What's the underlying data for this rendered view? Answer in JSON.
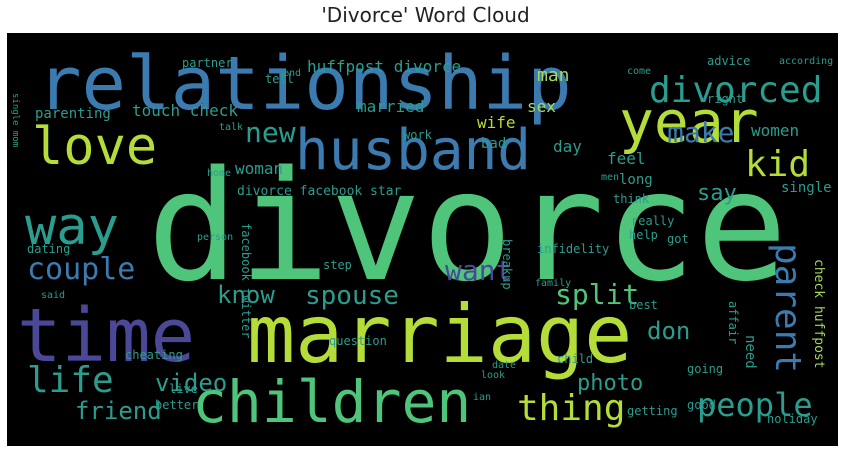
{
  "title": "'Divorce' Word Cloud",
  "colors": {
    "background": "#000000",
    "teal": "#2a9d8f",
    "blue": "#3b7bb0",
    "green": "#4ec57a",
    "lime": "#b5dd3a",
    "purple": "#4b4898",
    "yellowgreen": "#a6d85c"
  },
  "words": [
    {
      "text": "divorce",
      "color": "green"
    },
    {
      "text": "relationship",
      "color": "blue"
    },
    {
      "text": "marriage",
      "color": "lime"
    },
    {
      "text": "husband",
      "color": "blue"
    },
    {
      "text": "time",
      "color": "purple"
    },
    {
      "text": "children",
      "color": "green"
    },
    {
      "text": "love",
      "color": "lime"
    },
    {
      "text": "year",
      "color": "lime"
    },
    {
      "text": "way",
      "color": "teal"
    },
    {
      "text": "divorced",
      "color": "teal"
    },
    {
      "text": "parent",
      "color": "blue"
    },
    {
      "text": "life",
      "color": "teal"
    },
    {
      "text": "kid",
      "color": "lime"
    },
    {
      "text": "couple",
      "color": "blue"
    },
    {
      "text": "new",
      "color": "teal"
    },
    {
      "text": "make",
      "color": "blue"
    },
    {
      "text": "thing",
      "color": "lime"
    },
    {
      "text": "people",
      "color": "teal"
    },
    {
      "text": "split",
      "color": "green"
    },
    {
      "text": "want",
      "color": "purple"
    },
    {
      "text": "spouse",
      "color": "teal"
    },
    {
      "text": "know",
      "color": "teal"
    },
    {
      "text": "video",
      "color": "teal"
    },
    {
      "text": "friend",
      "color": "teal"
    },
    {
      "text": "say",
      "color": "teal"
    },
    {
      "text": "don",
      "color": "teal"
    },
    {
      "text": "photo",
      "color": "teal"
    },
    {
      "text": "huffpost divorce",
      "color": "teal"
    },
    {
      "text": "touch check",
      "color": "teal"
    },
    {
      "text": "wife",
      "color": "lime"
    },
    {
      "text": "sex",
      "color": "yellowgreen"
    },
    {
      "text": "man",
      "color": "yellowgreen"
    },
    {
      "text": "married",
      "color": "teal"
    },
    {
      "text": "day",
      "color": "teal"
    },
    {
      "text": "women",
      "color": "teal"
    },
    {
      "text": "woman",
      "color": "teal"
    },
    {
      "text": "feel",
      "color": "teal"
    },
    {
      "text": "parenting",
      "color": "teal"
    },
    {
      "text": "dating",
      "color": "teal"
    },
    {
      "text": "cheating",
      "color": "teal"
    },
    {
      "text": "divorce facebook star",
      "color": "teal"
    },
    {
      "text": "facebook twitter",
      "color": "teal"
    },
    {
      "text": "check huffpost",
      "color": "yellowgreen"
    },
    {
      "text": "infidelity",
      "color": "teal"
    },
    {
      "text": "breakup",
      "color": "teal"
    },
    {
      "text": "need",
      "color": "teal"
    },
    {
      "text": "affair",
      "color": "teal"
    },
    {
      "text": "long",
      "color": "teal"
    },
    {
      "text": "single",
      "color": "teal"
    },
    {
      "text": "advice",
      "color": "teal"
    },
    {
      "text": "partner",
      "color": "teal"
    },
    {
      "text": "tell",
      "color": "teal"
    },
    {
      "text": "bad",
      "color": "teal"
    },
    {
      "text": "work",
      "color": "teal"
    },
    {
      "text": "right",
      "color": "teal"
    },
    {
      "text": "better",
      "color": "teal"
    },
    {
      "text": "live",
      "color": "teal"
    },
    {
      "text": "child",
      "color": "teal"
    },
    {
      "text": "question",
      "color": "teal"
    },
    {
      "text": "best",
      "color": "teal"
    },
    {
      "text": "getting",
      "color": "teal"
    },
    {
      "text": "holiday",
      "color": "teal"
    },
    {
      "text": "good",
      "color": "teal"
    },
    {
      "text": "going",
      "color": "teal"
    },
    {
      "text": "really",
      "color": "teal"
    },
    {
      "text": "help",
      "color": "teal"
    },
    {
      "text": "think",
      "color": "teal"
    },
    {
      "text": "got",
      "color": "teal"
    },
    {
      "text": "step",
      "color": "teal"
    },
    {
      "text": "said",
      "color": "teal"
    },
    {
      "text": "home",
      "color": "teal"
    },
    {
      "text": "come",
      "color": "teal"
    },
    {
      "text": "end",
      "color": "teal"
    },
    {
      "text": "talk",
      "color": "teal"
    },
    {
      "text": "look",
      "color": "teal"
    },
    {
      "text": "date",
      "color": "teal"
    },
    {
      "text": "men",
      "color": "teal"
    },
    {
      "text": "according",
      "color": "teal"
    },
    {
      "text": "family",
      "color": "teal"
    },
    {
      "text": "person",
      "color": "teal"
    },
    {
      "text": "single mom",
      "color": "teal"
    },
    {
      "text": "ian",
      "color": "teal"
    }
  ]
}
